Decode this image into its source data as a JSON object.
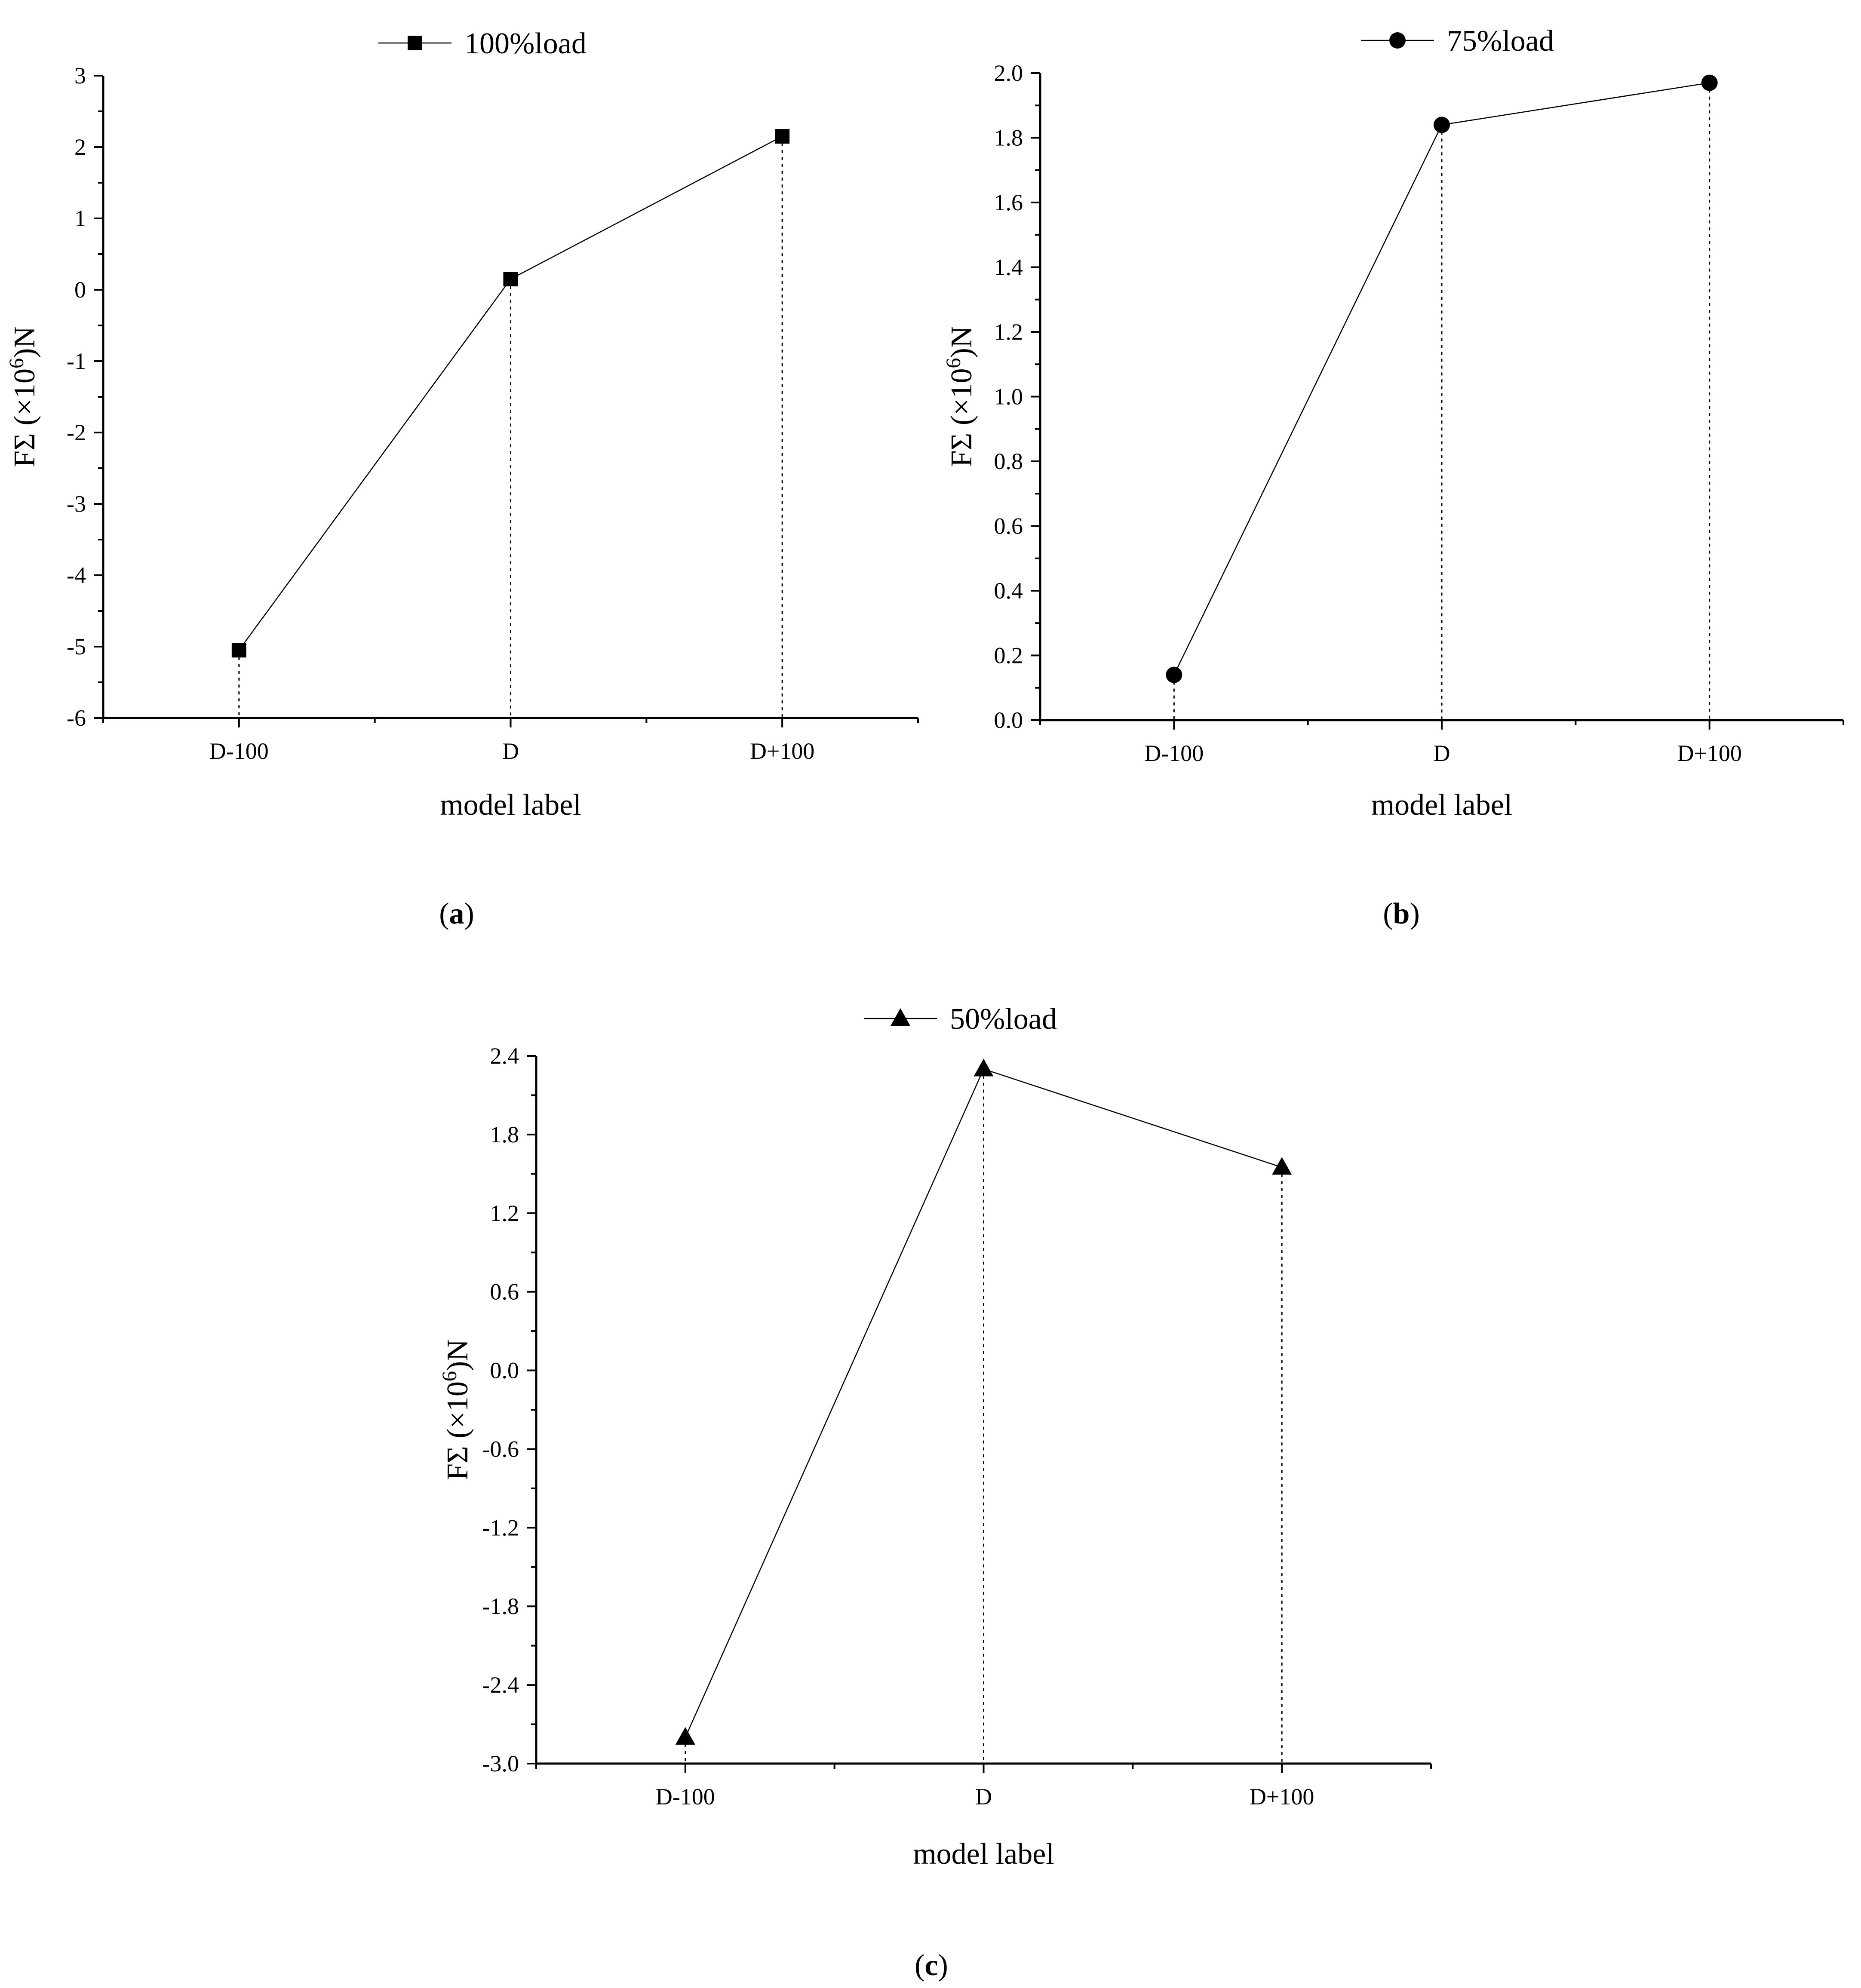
{
  "chart_data": [
    {
      "panel": "a",
      "caption": "(a)",
      "type": "line",
      "categories": [
        "D-100",
        "D",
        "D+100"
      ],
      "series": [
        {
          "name": "100%load",
          "marker": "square",
          "values": [
            -5.05,
            0.15,
            2.15
          ]
        }
      ],
      "xlabel": "model label",
      "ylabel_prefix": "FΣ (×10",
      "ylabel_sup": "6",
      "ylabel_suffix": ")N",
      "ylim": [
        -6,
        3
      ],
      "yticks": [
        -6,
        -5,
        -4,
        -3,
        -2,
        -1,
        0,
        1,
        2,
        3
      ],
      "ytick_labels": [
        "-6",
        "-5",
        "-4",
        "-3",
        "-2",
        "-1",
        "0",
        "1",
        "2",
        "3"
      ],
      "drop_lines": true,
      "grid": false,
      "legend_position": "top-center"
    },
    {
      "panel": "b",
      "caption": "(b)",
      "type": "line",
      "categories": [
        "D-100",
        "D",
        "D+100"
      ],
      "series": [
        {
          "name": "75%load",
          "marker": "circle",
          "values": [
            0.14,
            1.84,
            1.97
          ]
        }
      ],
      "xlabel": "model label",
      "ylabel_prefix": "FΣ (×10",
      "ylabel_sup": "6",
      "ylabel_suffix": ")N",
      "ylim": [
        0.0,
        2.0
      ],
      "yticks": [
        0.0,
        0.2,
        0.4,
        0.6,
        0.8,
        1.0,
        1.2,
        1.4,
        1.6,
        1.8,
        2.0
      ],
      "ytick_labels": [
        "0.0",
        "0.2",
        "0.4",
        "0.6",
        "0.8",
        "1.0",
        "1.2",
        "1.4",
        "1.6",
        "1.8",
        "2.0"
      ],
      "drop_lines": true,
      "grid": false,
      "legend_position": "top-center"
    },
    {
      "panel": "c",
      "caption": "(c)",
      "type": "line",
      "categories": [
        "D-100",
        "D",
        "D+100"
      ],
      "series": [
        {
          "name": "50%load",
          "marker": "triangle",
          "values": [
            -2.8,
            2.3,
            1.55
          ]
        }
      ],
      "xlabel": "model label",
      "ylabel_prefix": "FΣ (×10",
      "ylabel_sup": "6",
      "ylabel_suffix": ")N",
      "ylim": [
        -3.0,
        2.4
      ],
      "yticks": [
        -3.0,
        -2.4,
        -1.8,
        -1.2,
        -0.6,
        0.0,
        0.6,
        1.2,
        1.8,
        2.4
      ],
      "ytick_labels": [
        "-3.0",
        "-2.4",
        "-1.8",
        "-1.2",
        "-0.6",
        "0.0",
        "0.6",
        "1.2",
        "1.8",
        "2.4"
      ],
      "drop_lines": true,
      "grid": false,
      "legend_position": "top-center"
    }
  ]
}
